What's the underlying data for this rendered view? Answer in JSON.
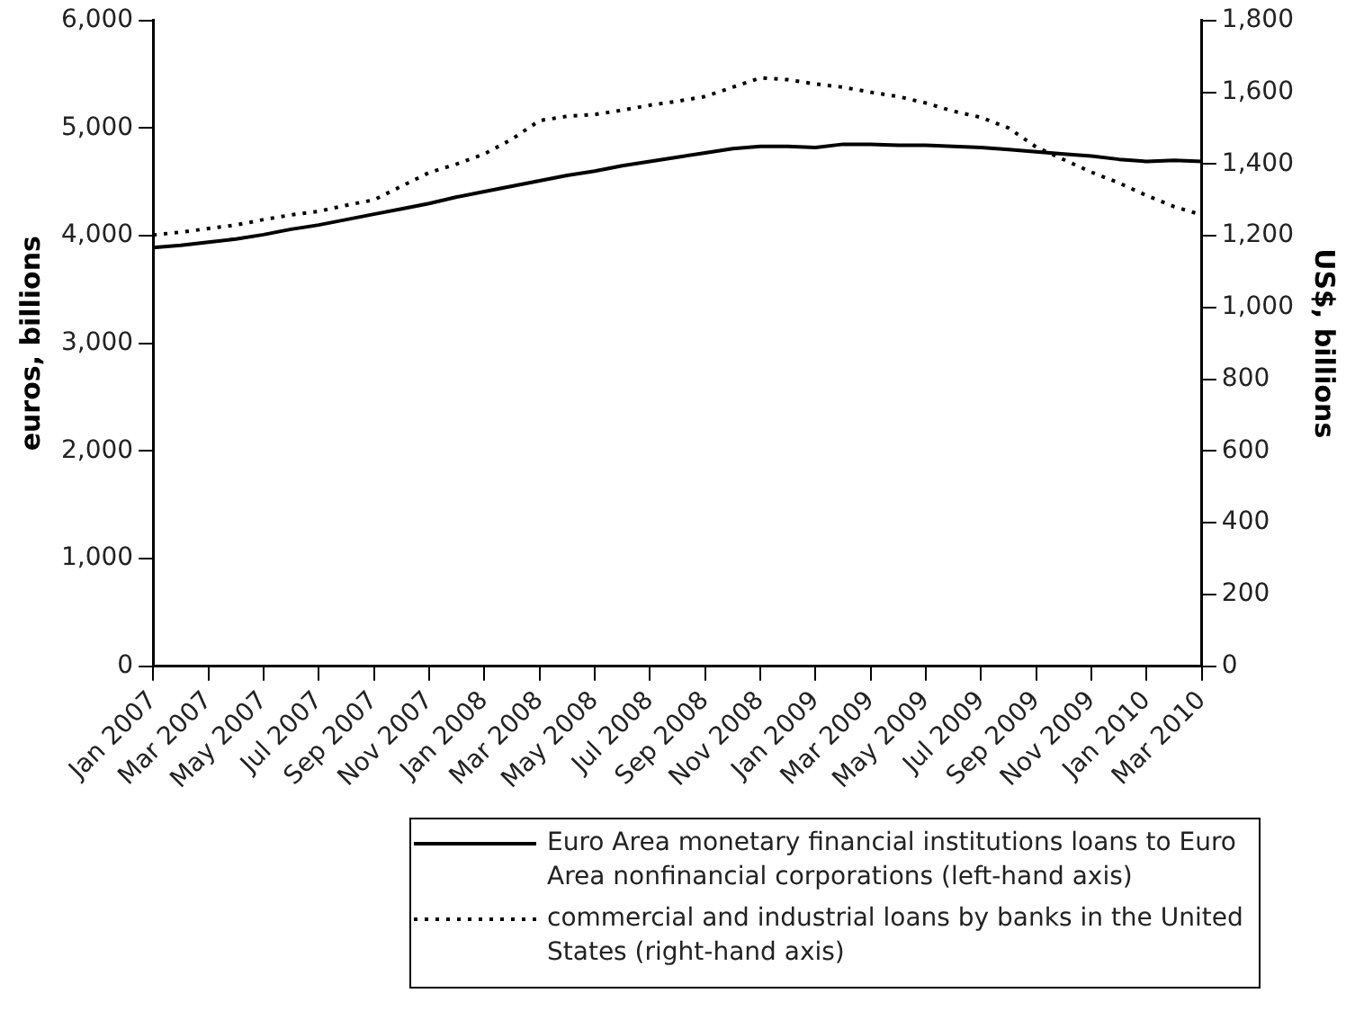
{
  "chart_data": {
    "type": "line",
    "ylabel": "euros, billions",
    "y2label": "US$, billions",
    "categories": [
      "Jan 2007",
      null,
      "Mar 2007",
      null,
      "May 2007",
      null,
      "Jul 2007",
      null,
      "Sep 2007",
      null,
      "Nov 2007",
      null,
      "Jan 2008",
      null,
      "Mar 2008",
      null,
      "May 2008",
      null,
      "Jul 2008",
      null,
      "Sep 2008",
      null,
      "Nov 2008",
      null,
      "Jan 2009",
      null,
      "Mar 2009",
      null,
      "May 2009",
      null,
      "Jul 2009",
      null,
      "Sep 2009",
      null,
      "Nov 2009",
      null,
      "Jan 2010",
      null,
      "Mar 2010"
    ],
    "series": [
      {
        "name": "Euro Area monetary financial institutions loans to Euro Area nonfinancial corporations (left-hand axis)",
        "color": "#000000",
        "line_style": "solid",
        "values": [
          3890,
          3910,
          3940,
          3970,
          4010,
          4060,
          4100,
          4150,
          4200,
          4250,
          4300,
          4360,
          4410,
          4460,
          4510,
          4560,
          4600,
          4650,
          4690,
          4730,
          4770,
          4810,
          4830,
          4830,
          4820,
          4850,
          4850,
          4840,
          4840,
          4830,
          4820,
          4800,
          4780,
          4760,
          4740,
          4710,
          4690,
          4700,
          4690
        ]
      },
      {
        "name": "commercial and industrial loans by banks in the United States (right-hand axis)",
        "color": "#000000",
        "line_style": "dotted",
        "axis": "y2",
        "values": [
          1202,
          1210,
          1220,
          1230,
          1245,
          1258,
          1268,
          1285,
          1300,
          1338,
          1376,
          1400,
          1428,
          1469,
          1521,
          1533,
          1538,
          1550,
          1564,
          1575,
          1588,
          1614,
          1640,
          1635,
          1623,
          1614,
          1600,
          1588,
          1570,
          1547,
          1530,
          1500,
          1447,
          1412,
          1377,
          1347,
          1312,
          1281,
          1258
        ]
      }
    ],
    "ylim": [
      0,
      6000
    ],
    "yticks": [
      0,
      {
        "value": 1000,
        "label": "1,000"
      },
      {
        "value": 2000,
        "label": "2,000"
      },
      {
        "value": 3000,
        "label": "3,000"
      },
      {
        "value": 4000,
        "label": "4,000"
      },
      {
        "value": 5000,
        "label": "5,000"
      },
      {
        "value": 6000,
        "label": "6,000"
      }
    ],
    "y2lim": [
      0,
      1800
    ],
    "y2ticks": [
      0,
      200,
      400,
      600,
      800,
      {
        "value": 1000,
        "label": "1,000"
      },
      {
        "value": 1200,
        "label": "1,200"
      },
      {
        "value": 1400,
        "label": "1,400"
      },
      {
        "value": 1600,
        "label": "1,600"
      },
      {
        "value": 1800,
        "label": "1,800"
      }
    ],
    "grid": false,
    "legend": "bottom",
    "marker": "none"
  }
}
